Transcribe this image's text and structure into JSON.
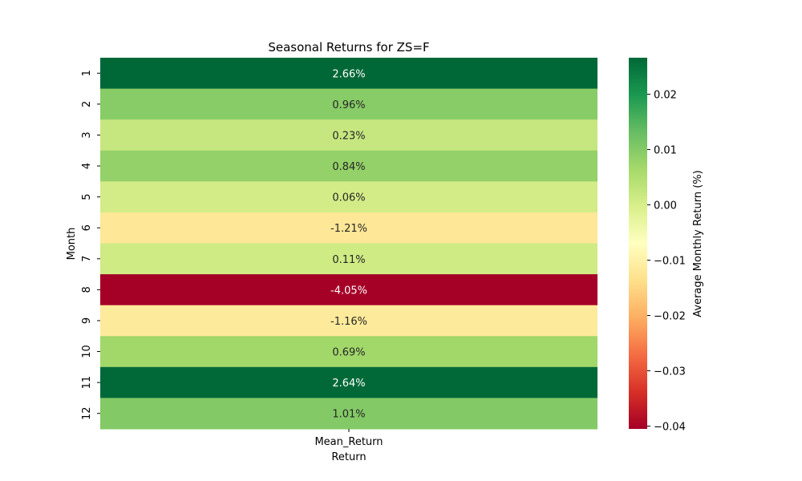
{
  "chart_data": {
    "type": "heatmap",
    "title": "Seasonal Returns for ZS=F",
    "xlabel": "Return",
    "ylabel": "Month",
    "x_categories": [
      "Mean_Return"
    ],
    "y_categories": [
      "1",
      "2",
      "3",
      "4",
      "5",
      "6",
      "7",
      "8",
      "9",
      "10",
      "11",
      "12"
    ],
    "values": [
      0.0266,
      0.0096,
      0.0023,
      0.0084,
      0.0006,
      -0.0121,
      0.0011,
      -0.0405,
      -0.0116,
      0.0069,
      0.0264,
      0.0101
    ],
    "cell_labels": [
      "2.66%",
      "0.96%",
      "0.23%",
      "0.84%",
      "0.06%",
      "-1.21%",
      "0.11%",
      "-4.05%",
      "-1.16%",
      "0.69%",
      "2.64%",
      "1.01%"
    ],
    "colorbar": {
      "label": "Average Monthly Return (%)",
      "colormap": "RdYlGn",
      "vmin": -0.0405,
      "vmax": 0.0266,
      "ticks": [
        0.02,
        0.01,
        0.0,
        -0.01,
        -0.02,
        -0.03,
        -0.04
      ],
      "tick_labels": [
        "0.02",
        "0.01",
        "0.00",
        "−0.01",
        "−0.02",
        "−0.03",
        "−0.04"
      ]
    }
  }
}
